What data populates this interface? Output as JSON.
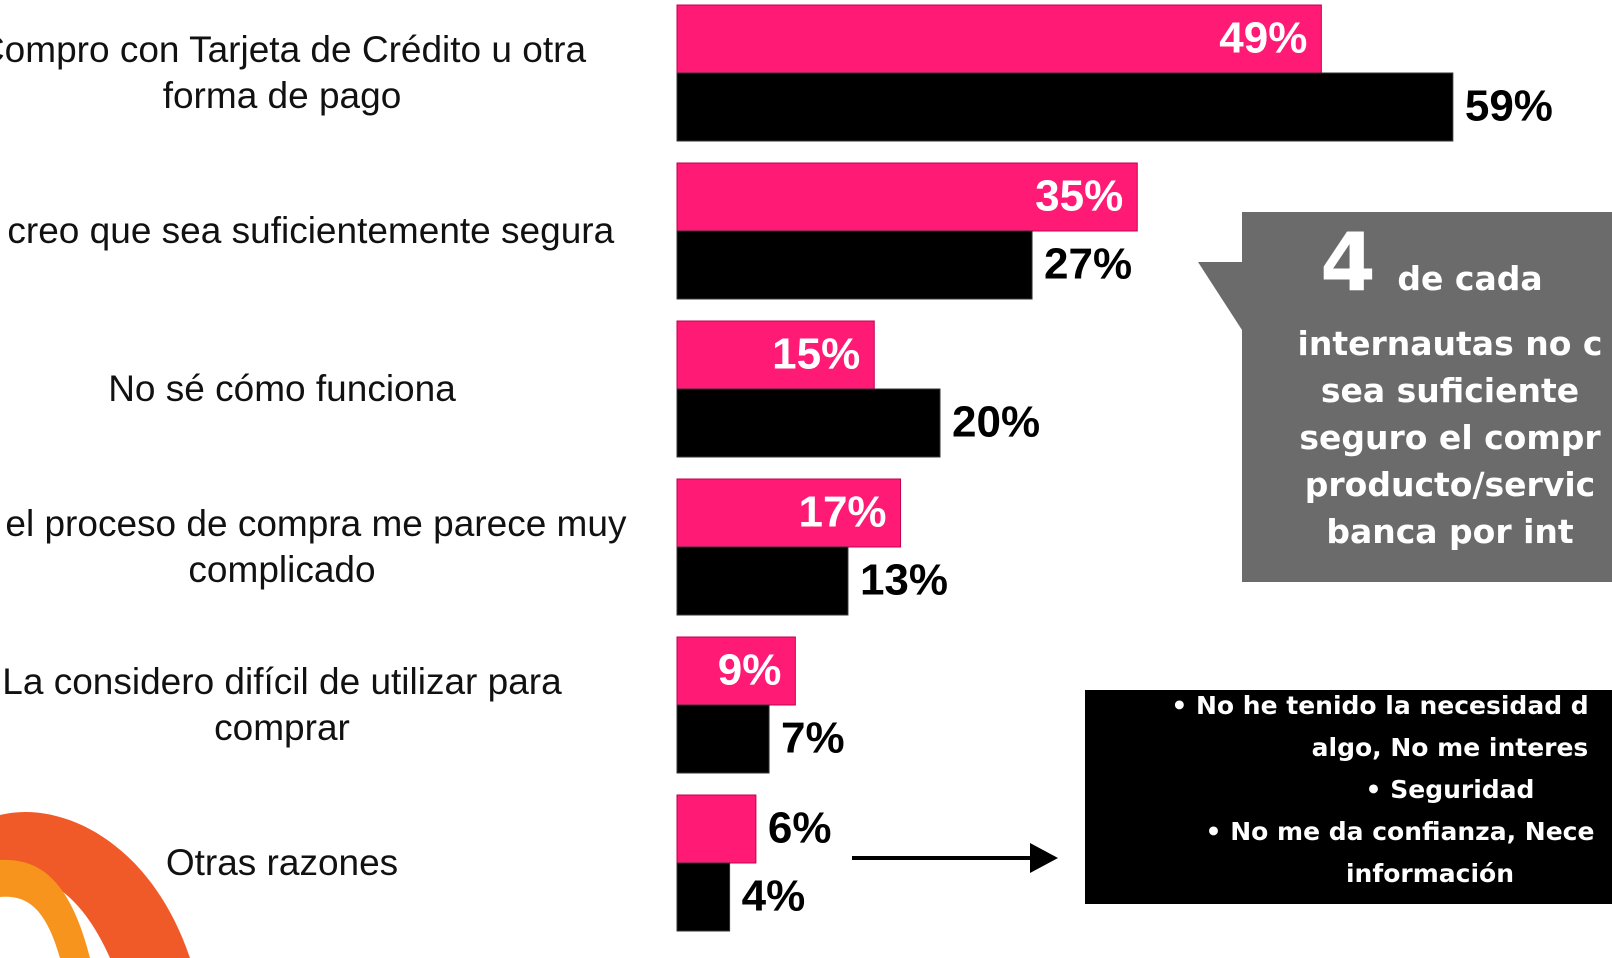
{
  "chart_data": {
    "type": "bar",
    "orientation": "horizontal",
    "categories": [
      "Compro con Tarjeta de Crédito u otra forma de pago",
      "No creo que sea suficientemente segura",
      "No sé cómo funciona",
      "Por el proceso de compra me parece muy complicado",
      "La considero difícil de utilizar para comprar",
      "Otras razones"
    ],
    "series": [
      {
        "color": "#ff1a75",
        "values": [
          49,
          35,
          15,
          17,
          9,
          6
        ],
        "value_labels": [
          "49%",
          "35%",
          "15%",
          "17%",
          "9%",
          "6%"
        ]
      },
      {
        "color": "#000000",
        "values": [
          59,
          27,
          20,
          13,
          7,
          4
        ],
        "value_labels": [
          "59%",
          "27%",
          "20%",
          "13%",
          "7%",
          "4%"
        ]
      }
    ],
    "xlim": [
      0,
      60
    ]
  },
  "callout": {
    "number": "4",
    "first_line": "de cada",
    "lines": [
      "internautas no c",
      "sea suficiente",
      "seguro el compr",
      "producto/servic",
      "banca por int"
    ]
  },
  "note": {
    "lines": [
      "• No he tenido la necesidad d",
      "algo, No me interes",
      "• Seguridad",
      "• No me da confianza, Nece",
      "información"
    ]
  }
}
